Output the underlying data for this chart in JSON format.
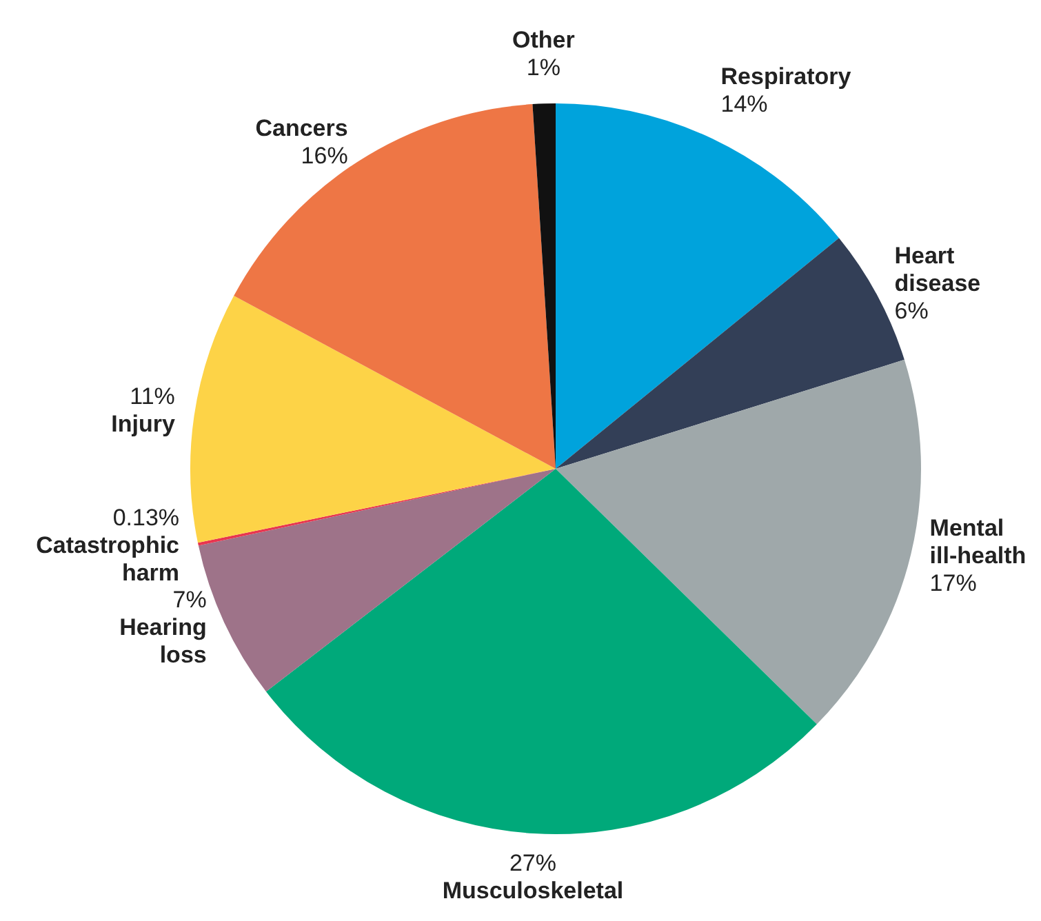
{
  "chart_data": {
    "type": "pie",
    "categories": [
      "Respiratory",
      "Heart disease",
      "Mental ill-health",
      "Musculoskeletal",
      "Hearing loss",
      "Catastrophic harm",
      "Injury",
      "Cancers",
      "Other"
    ],
    "values": [
      14,
      6,
      17,
      27,
      7,
      0.13,
      11,
      16,
      1
    ],
    "value_labels": [
      "14%",
      "6%",
      "17%",
      "27%",
      "7%",
      "0.13%",
      "11%",
      "16%",
      "1%"
    ],
    "colors": [
      "#00a3dc",
      "#333f57",
      "#9fa8aa",
      "#00a97a",
      "#9e7389",
      "#e8354f",
      "#fdd347",
      "#ee7645",
      "#111111"
    ],
    "legend": false
  }
}
